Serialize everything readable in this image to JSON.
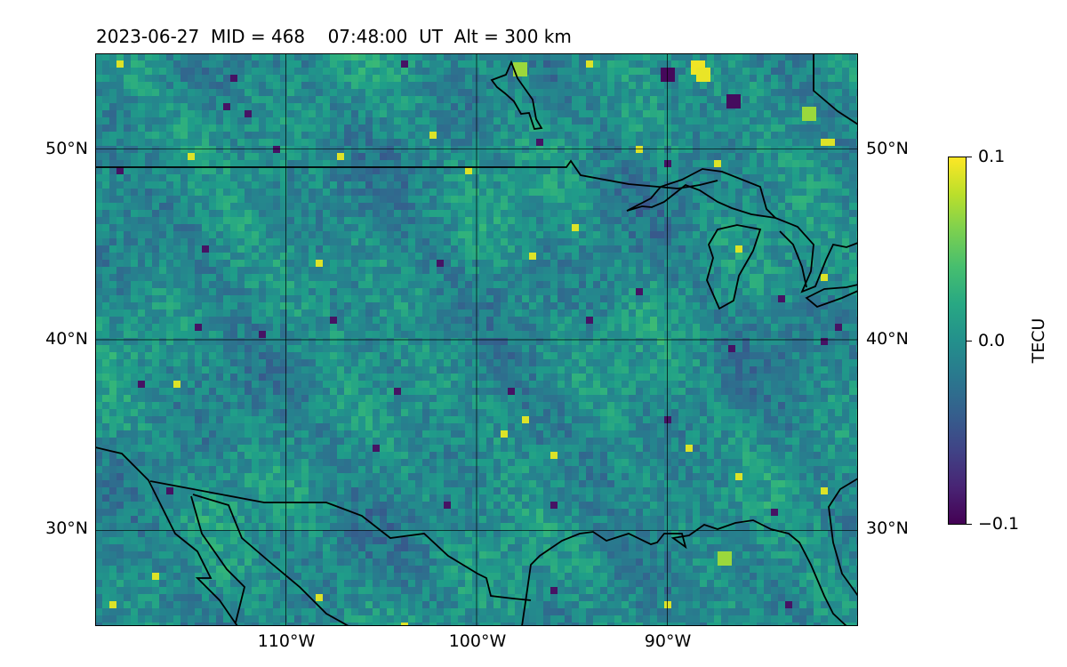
{
  "title": "2023-06-27  MID = 468    07:48:00  UT  Alt = 300 km",
  "map": {
    "lon_range": [
      -120,
      -80
    ],
    "lat_range": [
      25,
      55
    ],
    "grid_lons": [
      -110,
      -100,
      -90
    ],
    "grid_lats": [
      30,
      40,
      50
    ],
    "lat_labels": [
      "30°N",
      "40°N",
      "50°N"
    ],
    "lon_labels": [
      "110°W",
      "100°W",
      "90°W"
    ],
    "grid": true
  },
  "colorbar": {
    "label": "TECU",
    "colormap": "viridis",
    "vmin": -0.1,
    "vmax": 0.1,
    "tick_labels": [
      "0.1",
      "0.0",
      "−0.1"
    ]
  },
  "colors": {
    "viridis_low": "#440154",
    "viridis_mid": "#21918c",
    "viridis_high": "#fde725",
    "coastline": "#000000"
  }
}
